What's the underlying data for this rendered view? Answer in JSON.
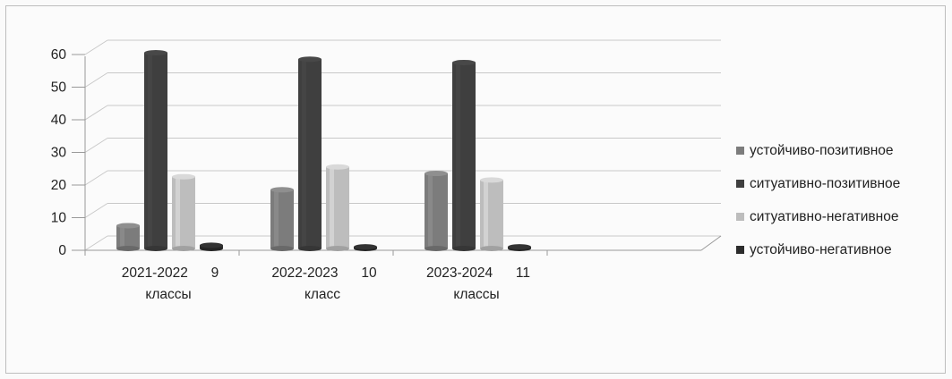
{
  "colors": {
    "series": [
      "#7c7c7c",
      "#3f3f3f",
      "#bdbdbd",
      "#2c2c2c"
    ],
    "axis": "#999999",
    "text": "#222222"
  },
  "chart_data": {
    "type": "bar",
    "categories": [
      [
        "2021-2022      9",
        "классы"
      ],
      [
        "2022-2023      10",
        "класс"
      ],
      [
        "2023-2024      11",
        "классы"
      ]
    ],
    "series": [
      {
        "name": "устойчиво-позитивное",
        "values": [
          7,
          18,
          23
        ]
      },
      {
        "name": "ситуативно-позитивное",
        "values": [
          60,
          58,
          57
        ]
      },
      {
        "name": "ситуативно-негативное",
        "values": [
          22,
          25,
          21
        ]
      },
      {
        "name": "устойчиво-негативное",
        "values": [
          1,
          0.5,
          0.5
        ]
      }
    ],
    "y_ticks": [
      "0",
      "10",
      "20",
      "30",
      "40",
      "50",
      "60"
    ],
    "ylim": [
      0,
      60
    ],
    "grid": true,
    "legend_position": "right",
    "three_d": true
  }
}
